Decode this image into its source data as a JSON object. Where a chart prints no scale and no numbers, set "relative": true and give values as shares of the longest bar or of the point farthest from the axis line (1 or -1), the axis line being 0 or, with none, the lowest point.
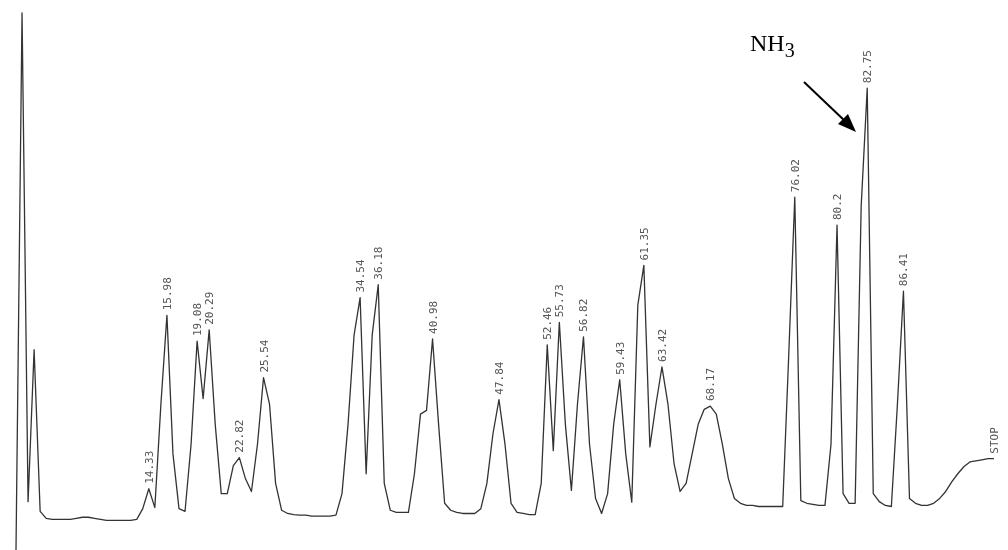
{
  "chart_data": {
    "type": "line",
    "relative": true,
    "categories": [
      null,
      null,
      null,
      null,
      null,
      null,
      null,
      null,
      null,
      null,
      null,
      null,
      null,
      null,
      null,
      null,
      null,
      null,
      null,
      null,
      null,
      null,
      null,
      null,
      null,
      null,
      null,
      null,
      null,
      null,
      null,
      null,
      null,
      null,
      null,
      null,
      null,
      null,
      null,
      null,
      null,
      null,
      null,
      null,
      null,
      null,
      null,
      null,
      null,
      null,
      null,
      null,
      null,
      null,
      null,
      null,
      null,
      null,
      null,
      null,
      null,
      null,
      null,
      null,
      null,
      null,
      null,
      null,
      null,
      null,
      null,
      null,
      null,
      null,
      null,
      null,
      null,
      null,
      null,
      null,
      null,
      null,
      null,
      null,
      null,
      null,
      null,
      null,
      null,
      null,
      null,
      null,
      null,
      null,
      null,
      null,
      null,
      null,
      null,
      null,
      null,
      null,
      null,
      null,
      null,
      null,
      null,
      null,
      null,
      null,
      null,
      null,
      null,
      null,
      null,
      null,
      null,
      null,
      null,
      null,
      null,
      null,
      null,
      null,
      null,
      null,
      null,
      null,
      null,
      null,
      null,
      null,
      null,
      null,
      null,
      null,
      null,
      null,
      null,
      null,
      null,
      null,
      null,
      null,
      null,
      null,
      null,
      null,
      null,
      null,
      null,
      null,
      null,
      null,
      null,
      null,
      null,
      null,
      null,
      null,
      null,
      null,
      null
    ],
    "series": [
      {
        "color": "#333333",
        "values": [
          0,
          1,
          0.09,
          0.373,
          0.072,
          0.059,
          0.057,
          0.057,
          0.057,
          0.057,
          0.059,
          0.061,
          0.061,
          0.059,
          0.057,
          0.055,
          0.055,
          0.055,
          0.055,
          0.055,
          0.057,
          0.077,
          0.114,
          0.079,
          0.271,
          0.437,
          0.179,
          0.077,
          0.072,
          0.197,
          0.389,
          0.282,
          0.41,
          0.234,
          0.105,
          0.105,
          0.157,
          0.172,
          0.133,
          0.109,
          0.197,
          0.321,
          0.271,
          0.124,
          0.074,
          0.068,
          0.066,
          0.065,
          0.065,
          0.063,
          0.063,
          0.063,
          0.063,
          0.065,
          0.105,
          0.234,
          0.4,
          0.47,
          0.142,
          0.4,
          0.494,
          0.124,
          0.074,
          0.07,
          0.07,
          0.07,
          0.142,
          0.253,
          0.26,
          0.393,
          0.234,
          0.087,
          0.074,
          0.07,
          0.068,
          0.068,
          0.068,
          0.077,
          0.124,
          0.216,
          0.28,
          0.197,
          0.087,
          0.07,
          0.068,
          0.066,
          0.066,
          0.124,
          0.382,
          0.185,
          0.424,
          0.234,
          0.111,
          0.271,
          0.397,
          0.197,
          0.096,
          0.068,
          0.105,
          0.234,
          0.317,
          0.179,
          0.089,
          0.456,
          0.53,
          0.192,
          0.271,
          0.341,
          0.271,
          0.161,
          0.109,
          0.124,
          0.179,
          0.234,
          0.262,
          0.268,
          0.253,
          0.197,
          0.133,
          0.096,
          0.087,
          0.083,
          0.083,
          0.081,
          0.081,
          0.081,
          0.081,
          0.081,
          0.363,
          0.657,
          0.092,
          0.087,
          0.085,
          0.083,
          0.083,
          0.197,
          0.605,
          0.105,
          0.087,
          0.087,
          0.64,
          0.86,
          0.105,
          0.09,
          0.083,
          0.081,
          0.271,
          0.482,
          0.096,
          0.087,
          0.083,
          0.083,
          0.087,
          0.096,
          0.109,
          0.127,
          0.142,
          0.155,
          0.164,
          0.166,
          0.168,
          0.17,
          0.17
        ]
      }
    ],
    "annotations": [
      "NH$_{3}$",
      {
        "text": "14.33",
        "y": 0.114
      },
      {
        "text": "15.98",
        "y": 0.437
      },
      {
        "text": "19.08",
        "y": 0.389
      },
      {
        "text": "20.29",
        "y": 0.41
      },
      {
        "text": "22.82",
        "y": 0.172
      },
      {
        "text": "25.54",
        "y": 0.321
      },
      {
        "text": "34.54",
        "y": 0.47
      },
      {
        "text": "36.18",
        "y": 0.494
      },
      {
        "text": "40.98",
        "y": 0.393
      },
      {
        "text": "47.84",
        "y": 0.28
      },
      {
        "text": "52.46",
        "y": 0.382
      },
      {
        "text": "55.73",
        "y": 0.424
      },
      {
        "text": "56.82",
        "y": 0.397
      },
      {
        "text": "59.43",
        "y": 0.317
      },
      {
        "text": "61.35",
        "y": 0.53
      },
      {
        "text": "63.42",
        "y": 0.341
      },
      {
        "text": "68.17",
        "y": 0.268
      },
      {
        "text": "76.02",
        "y": 0.657
      },
      {
        "text": "80.2",
        "y": 0.605
      },
      {
        "text": "82.75",
        "y": 0.86
      },
      {
        "text": "86.41",
        "y": 0.482
      },
      {
        "text": "STOP",
        "y": 0.17
      }
    ]
  }
}
